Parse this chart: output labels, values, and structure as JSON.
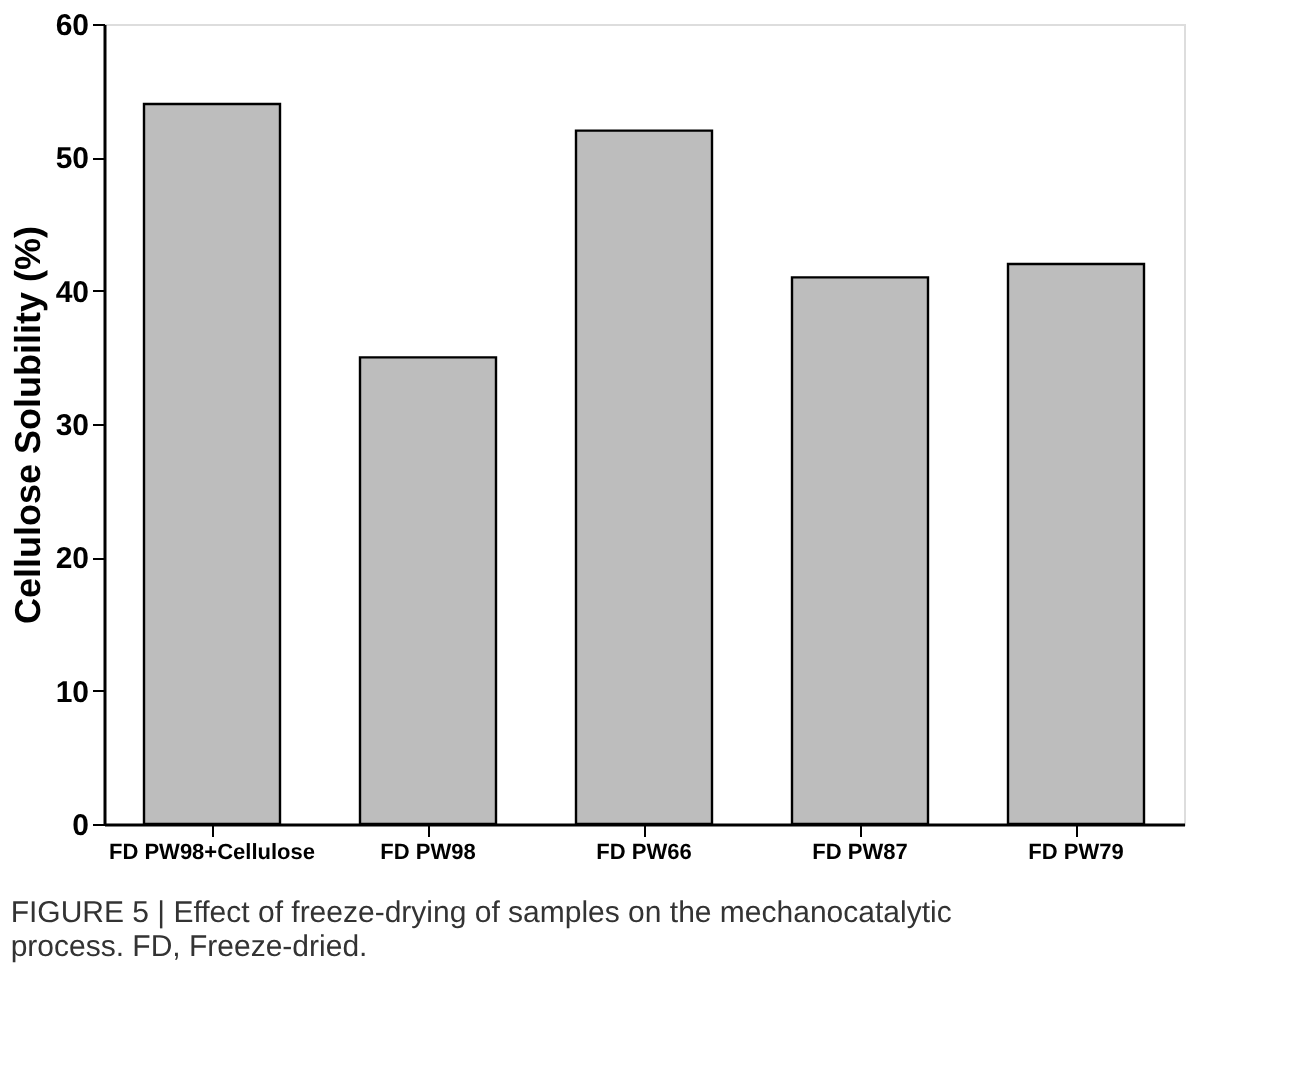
{
  "chart_data": {
    "type": "bar",
    "ylabel": "Cellulose Solubility (%)",
    "categories": [
      "FD PW98+Cellulose",
      "FD PW98",
      "FD PW66",
      "FD PW87",
      "FD PW79"
    ],
    "values": [
      54,
      35,
      52,
      41,
      42
    ],
    "color": "#bdbdbd",
    "ylim": [
      0,
      60
    ],
    "yticks": [
      0,
      10,
      20,
      30,
      40,
      50,
      60
    ],
    "grid": false,
    "annotations": [
      "FIGURE 5 | Effect of freeze-drying of samples on the mechanocatalytic process. FD, Freeze-dried."
    ]
  }
}
